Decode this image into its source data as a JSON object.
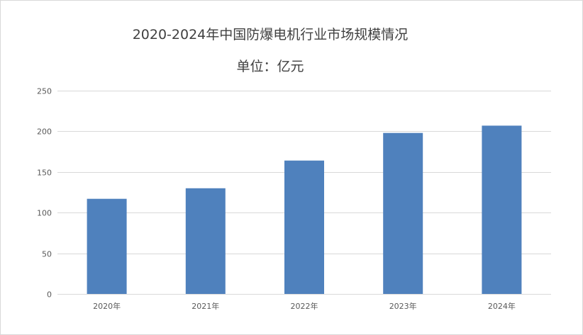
{
  "chart_data": {
    "type": "bar",
    "title": "2020-2024年中国防爆电机行业市场规模情况",
    "subtitle": "单位：亿元",
    "categories": [
      "2020年",
      "2021年",
      "2022年",
      "2023年",
      "2024年"
    ],
    "values": [
      117,
      130,
      164,
      198,
      207
    ],
    "ylim": [
      0,
      250
    ],
    "yticks": [
      0,
      50,
      100,
      150,
      200,
      250
    ],
    "grid": true,
    "legend": "none",
    "bar_color": "#4f81bd",
    "grid_color": "#d9d9d9"
  }
}
